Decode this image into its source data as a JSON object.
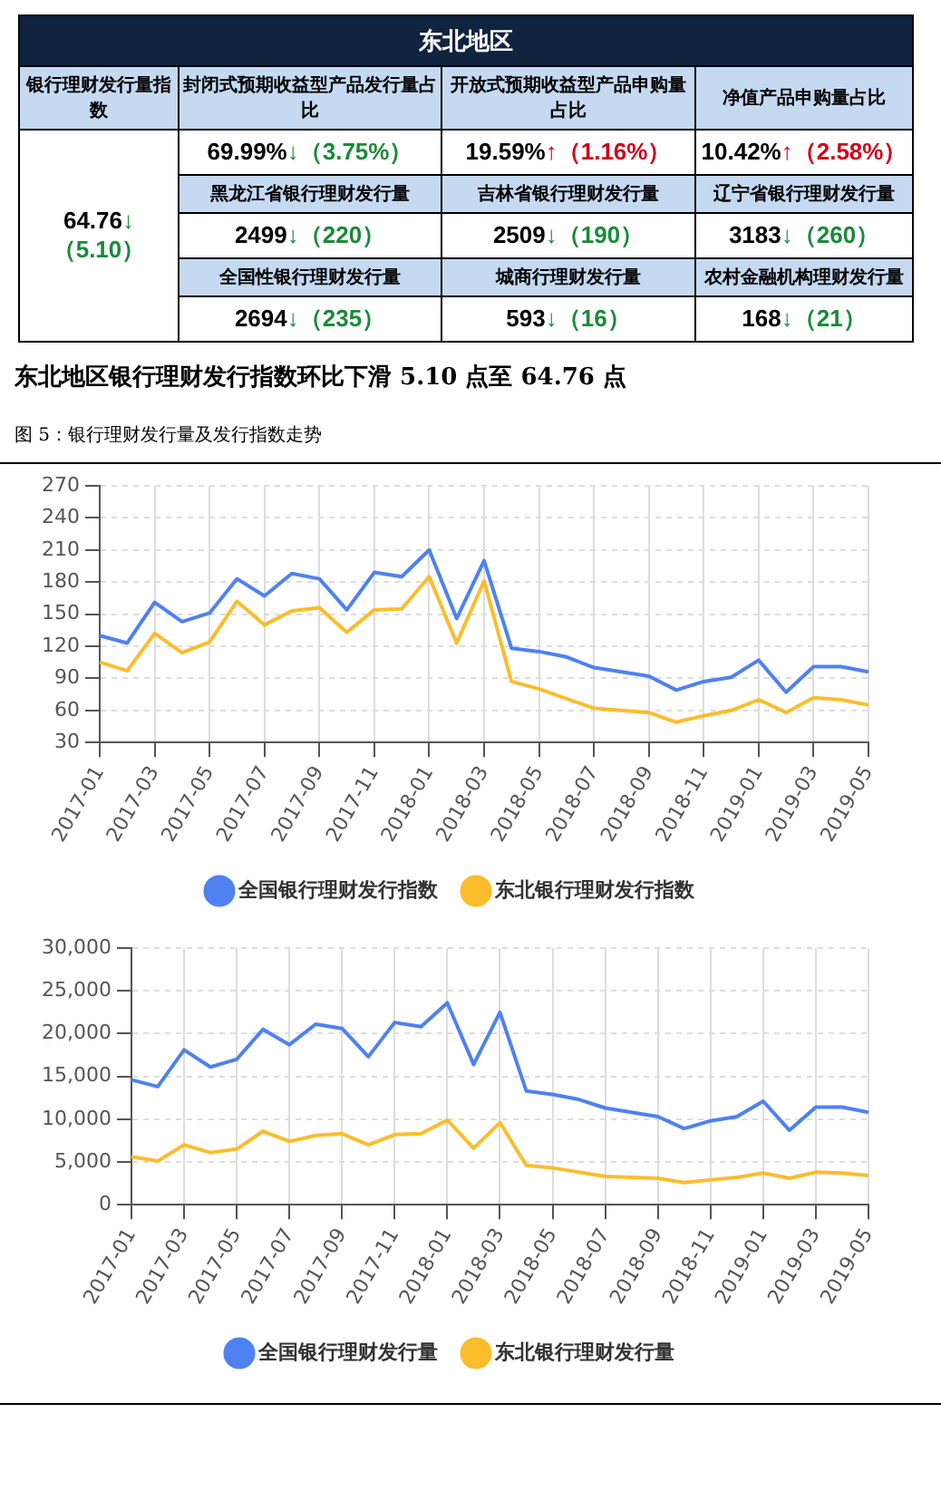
{
  "chart_data": [
    {
      "type": "other",
      "title": "东北地区",
      "annotations": [
        "银行理财发行量指数",
        "封闭式预期收益型产品发行量占比",
        "开放式预期收益型产品申购量占比",
        "净值产品申购量占比",
        "64.76↓（5.10）",
        "69.99%↓（3.75%）",
        "19.59%↑（1.16%）",
        "10.42%↑（2.58%）",
        "黑龙江省银行理财发行量",
        "吉林省银行理财发行量",
        "辽宁省银行理财发行量",
        "2499↓（220）",
        "2509↓（190）",
        "3183↓（260）",
        "全国性银行理财发行量",
        "城商行理财发行量",
        "农村金融机构理财发行量",
        "2694↓（235）",
        "593↓（16）",
        "168↓（21）",
        "东北地区银行理财发行指数环比下滑 5.10 点至 64.76 点"
      ]
    },
    {
      "type": "line",
      "title": "图 5：银行理财发行量及发行指数走势",
      "categories": [
        "2017-01",
        null,
        "2017-03",
        null,
        "2017-05",
        null,
        "2017-07",
        null,
        "2017-09",
        null,
        "2017-11",
        null,
        "2018-01",
        null,
        "2018-03",
        null,
        "2018-05",
        null,
        "2018-07",
        null,
        "2018-09",
        null,
        "2018-11",
        null,
        "2019-01",
        null,
        "2019-03",
        null,
        "2019-05"
      ],
      "series": [
        {
          "name": "全国银行理财发行指数",
          "color": "#4f81f0",
          "values": [
            130,
            123,
            161,
            143,
            151,
            183,
            167,
            188,
            183,
            154,
            189,
            185,
            210,
            146,
            200,
            118,
            115,
            110,
            100,
            96,
            92,
            79,
            87,
            91,
            107,
            77,
            101,
            101,
            96
          ]
        },
        {
          "name": "东北银行理财发行指数",
          "color": "#fbbd2c",
          "values": [
            105,
            97,
            132,
            114,
            124,
            162,
            140,
            153,
            156,
            133,
            154,
            155,
            185,
            123,
            181,
            87,
            80,
            71,
            62,
            60,
            58,
            49,
            55,
            60,
            70,
            58,
            72,
            70,
            65
          ]
        }
      ],
      "ylim": [
        30,
        270
      ],
      "yticks": [
        30,
        60,
        90,
        120,
        150,
        180,
        210,
        240,
        270
      ],
      "grid": true,
      "legend": "bottom",
      "marker": "none"
    },
    {
      "type": "line",
      "categories": [
        "2017-01",
        null,
        "2017-03",
        null,
        "2017-05",
        null,
        "2017-07",
        null,
        "2017-09",
        null,
        "2017-11",
        null,
        "2018-01",
        null,
        "2018-03",
        null,
        "2018-05",
        null,
        "2018-07",
        null,
        "2018-09",
        null,
        "2018-11",
        null,
        "2019-01",
        null,
        "2019-03",
        null,
        "2019-05"
      ],
      "series": [
        {
          "name": "全国银行理财发行量",
          "color": "#4f81f0",
          "values": [
            14600,
            13800,
            18100,
            16100,
            17000,
            20500,
            18700,
            21100,
            20600,
            17300,
            21300,
            20800,
            23600,
            16400,
            22500,
            13300,
            12900,
            12300,
            11300,
            10800,
            10300,
            8900,
            9800,
            10300,
            12100,
            8700,
            11400,
            11400,
            10800
          ]
        },
        {
          "name": "东北银行理财发行量",
          "color": "#fbbd2c",
          "values": [
            5600,
            5100,
            7000,
            6100,
            6500,
            8600,
            7400,
            8100,
            8300,
            7000,
            8200,
            8300,
            9900,
            6600,
            9600,
            4600,
            4300,
            3800,
            3300,
            3200,
            3100,
            2600,
            2900,
            3200,
            3700,
            3100,
            3800,
            3700,
            3400
          ]
        }
      ],
      "ylim": [
        0,
        30000
      ],
      "yticks": [
        0,
        {
          "value": 5000,
          "label": "5,000"
        },
        {
          "value": 10000,
          "label": "10,000"
        },
        {
          "value": 15000,
          "label": "15,000"
        },
        {
          "value": 20000,
          "label": "20,000"
        },
        {
          "value": 25000,
          "label": "25,000"
        },
        {
          "value": 30000,
          "label": "30,000"
        }
      ],
      "grid": true,
      "legend": "bottom",
      "marker": "none"
    }
  ]
}
